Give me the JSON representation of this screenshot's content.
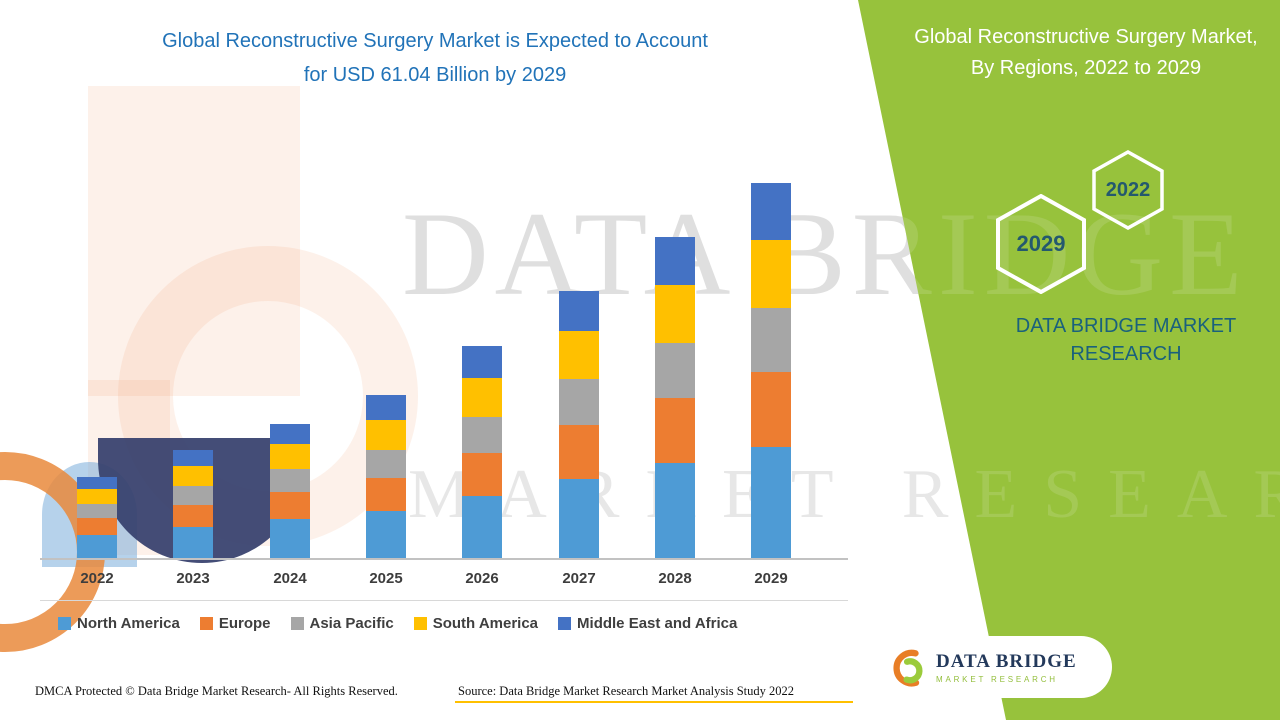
{
  "header": {
    "title_line1": "Global Reconstructive Surgery Market is Expected to Account",
    "title_line2": "for USD 61.04 Billion by 2029"
  },
  "side_panel": {
    "heading": "Global Reconstructive Surgery Market, By Regions, 2022 to 2029",
    "hexagons": [
      "2022",
      "2029"
    ],
    "brand": "DATA BRIDGE MARKET RESEARCH"
  },
  "watermark": {
    "line1": "DATA BRIDGE",
    "line2": "MARKET RESEARCH"
  },
  "footer": {
    "dmca": "DMCA Protected © Data Bridge Market Research- All Rights Reserved.",
    "source": "Source: Data Bridge Market Research Market Analysis Study 2022"
  },
  "logo_card": {
    "name": "DATA BRIDGE",
    "tagline": "MARKET RESEARCH"
  },
  "colors": {
    "panel_green": "#97C23C",
    "title_blue": "#2173B8"
  },
  "chart_data": {
    "type": "bar",
    "stacked": true,
    "title": "Global Reconstructive Surgery Market is Expected to Account for USD 61.04 Billion by 2029",
    "unit": "USD Billion",
    "values_estimated_from_bar_heights": true,
    "total_2029": 61.04,
    "y_axis_visible": false,
    "legend_position": "bottom",
    "categories": [
      "2022",
      "2023",
      "2024",
      "2025",
      "2026",
      "2027",
      "2028",
      "2029"
    ],
    "series": [
      {
        "name": "North America",
        "color": "#4E9BD5",
        "values": [
          4.0,
          5.3,
          6.7,
          8.0,
          10.4,
          13.1,
          15.7,
          18.3
        ]
      },
      {
        "name": "Europe",
        "color": "#ED7D31",
        "values": [
          2.7,
          3.5,
          4.4,
          5.3,
          7.0,
          8.7,
          10.5,
          12.2
        ]
      },
      {
        "name": "Asia Pacific",
        "color": "#A6A6A6",
        "values": [
          2.3,
          3.0,
          3.8,
          4.5,
          5.9,
          7.4,
          8.9,
          10.4
        ]
      },
      {
        "name": "South America",
        "color": "#FFC000",
        "values": [
          2.4,
          3.2,
          4.0,
          4.8,
          6.3,
          7.8,
          9.4,
          11.0
        ]
      },
      {
        "name": "Middle East and Africa",
        "color": "#4472C4",
        "values": [
          2.0,
          2.6,
          3.3,
          4.0,
          5.2,
          6.5,
          7.8,
          9.2
        ]
      }
    ],
    "totals": [
      13.4,
      17.6,
      22.2,
      26.6,
      34.8,
      43.5,
      52.3,
      61.04
    ]
  }
}
